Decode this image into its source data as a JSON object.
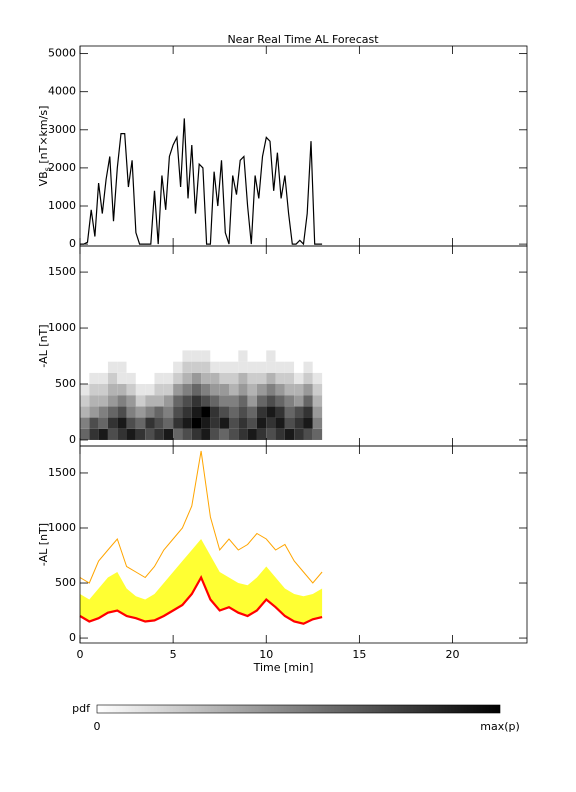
{
  "title": "Near Real Time AL Forecast",
  "chart_data": [
    {
      "type": "line",
      "y_label": "VB",
      "y_label_sub": "s",
      "y_label_rest": " [nT×km/s]",
      "color": "#000000",
      "x": [
        0,
        0.2,
        0.4,
        0.6,
        0.8,
        1.0,
        1.2,
        1.4,
        1.6,
        1.8,
        2.0,
        2.2,
        2.4,
        2.6,
        2.8,
        3.0,
        3.2,
        3.4,
        3.6,
        3.8,
        4.0,
        4.2,
        4.4,
        4.6,
        4.8,
        5.0,
        5.2,
        5.4,
        5.6,
        5.8,
        6.0,
        6.2,
        6.4,
        6.6,
        6.8,
        7.0,
        7.2,
        7.4,
        7.6,
        7.8,
        8.0,
        8.2,
        8.4,
        8.6,
        8.8,
        9.0,
        9.2,
        9.4,
        9.6,
        9.8,
        10.0,
        10.2,
        10.4,
        10.6,
        10.8,
        11.0,
        11.2,
        11.4,
        11.6,
        11.8,
        12.0,
        12.2,
        12.4,
        12.6,
        12.8,
        13.0
      ],
      "values": [
        0,
        0,
        50,
        900,
        200,
        1600,
        800,
        1700,
        2300,
        600,
        2000,
        2900,
        2900,
        1500,
        2200,
        300,
        0,
        0,
        0,
        0,
        1400,
        0,
        1800,
        900,
        2300,
        2600,
        2800,
        1500,
        3300,
        1200,
        2600,
        800,
        2100,
        2000,
        0,
        0,
        1900,
        1000,
        2200,
        300,
        0,
        1800,
        1300,
        2200,
        2300,
        1000,
        0,
        1800,
        1200,
        2300,
        2800,
        2700,
        1400,
        2400,
        1200,
        1800,
        800,
        0,
        0,
        100,
        0,
        800,
        2700,
        0,
        0,
        0
      ],
      "xlim": [
        0,
        24
      ],
      "xticks": [
        0,
        5,
        10,
        15,
        20
      ],
      "ylim": [
        -50,
        5200
      ],
      "yticks": [
        0,
        1000,
        2000,
        3000,
        4000,
        5000
      ]
    },
    {
      "type": "heatmap",
      "y_label": "-AL [nT]",
      "xbins": [
        0,
        0.5,
        1,
        1.5,
        2,
        2.5,
        3,
        3.5,
        4,
        4.5,
        5,
        5.5,
        6,
        6.5,
        7,
        7.5,
        8,
        8.5,
        9,
        9.5,
        10,
        10.5,
        11,
        11.5,
        12,
        12.5,
        13
      ],
      "ybins": [
        0,
        100,
        200,
        300,
        400,
        500,
        600,
        700,
        800
      ],
      "z": [
        [
          0.6,
          0.8,
          0.9,
          0.7,
          0.8,
          0.9,
          0.8,
          0.7,
          0.8,
          0.9,
          0.6,
          0.7,
          0.8,
          0.9,
          0.7,
          0.6,
          0.7,
          0.8,
          0.9,
          0.8,
          0.7,
          0.8,
          0.9,
          0.8,
          0.7,
          0.6
        ],
        [
          0.5,
          0.7,
          0.6,
          0.8,
          0.9,
          0.7,
          0.6,
          0.8,
          0.7,
          0.6,
          0.8,
          0.9,
          1.0,
          0.9,
          0.8,
          0.9,
          0.7,
          0.8,
          0.7,
          0.9,
          0.8,
          0.9,
          0.7,
          0.8,
          0.9,
          0.5
        ],
        [
          0.3,
          0.4,
          0.5,
          0.6,
          0.7,
          0.5,
          0.4,
          0.5,
          0.6,
          0.5,
          0.7,
          0.8,
          0.9,
          1.0,
          0.8,
          0.7,
          0.6,
          0.7,
          0.6,
          0.8,
          0.9,
          0.8,
          0.6,
          0.7,
          0.8,
          0.4
        ],
        [
          0.2,
          0.3,
          0.3,
          0.4,
          0.5,
          0.4,
          0.2,
          0.3,
          0.3,
          0.4,
          0.6,
          0.7,
          0.8,
          0.7,
          0.6,
          0.5,
          0.5,
          0.6,
          0.4,
          0.6,
          0.7,
          0.6,
          0.5,
          0.4,
          0.6,
          0.3
        ],
        [
          0.1,
          0.2,
          0.2,
          0.3,
          0.3,
          0.2,
          0.1,
          0.1,
          0.2,
          0.2,
          0.4,
          0.5,
          0.6,
          0.5,
          0.4,
          0.4,
          0.3,
          0.4,
          0.3,
          0.4,
          0.5,
          0.4,
          0.3,
          0.3,
          0.4,
          0.2
        ],
        [
          0,
          0.1,
          0.1,
          0.2,
          0.1,
          0.1,
          0,
          0,
          0.1,
          0.1,
          0.2,
          0.3,
          0.4,
          0.3,
          0.3,
          0.2,
          0.2,
          0.3,
          0.2,
          0.2,
          0.3,
          0.2,
          0.2,
          0.1,
          0.2,
          0.1
        ],
        [
          0,
          0,
          0,
          0.1,
          0.1,
          0,
          0,
          0,
          0,
          0,
          0.1,
          0.2,
          0.2,
          0.2,
          0.1,
          0.1,
          0.1,
          0.1,
          0.1,
          0.1,
          0.1,
          0.1,
          0.1,
          0,
          0.1,
          0
        ],
        [
          0,
          0,
          0,
          0,
          0,
          0,
          0,
          0,
          0,
          0,
          0,
          0.1,
          0.1,
          0.1,
          0,
          0,
          0,
          0.1,
          0,
          0,
          0.1,
          0,
          0,
          0,
          0,
          0
        ]
      ],
      "xlim": [
        0,
        24
      ],
      "xticks": [
        0,
        5,
        10,
        15,
        20
      ],
      "ylim": [
        -54,
        1733
      ],
      "yticks": [
        0,
        500,
        1000,
        1500
      ]
    },
    {
      "type": "band",
      "y_label": "-AL [nT]",
      "x_label": "Time [min]",
      "x": [
        0,
        0.5,
        1,
        1.5,
        2,
        2.5,
        3,
        3.5,
        4,
        4.5,
        5,
        5.5,
        6,
        6.5,
        7,
        7.5,
        8,
        8.5,
        9,
        9.5,
        10,
        10.5,
        11,
        11.5,
        12,
        12.5,
        13
      ],
      "series": [
        {
          "color": "#ff0000",
          "values": [
            200,
            150,
            180,
            230,
            250,
            200,
            180,
            150,
            160,
            200,
            250,
            300,
            400,
            550,
            350,
            250,
            280,
            230,
            200,
            250,
            350,
            280,
            200,
            150,
            130,
            170,
            190
          ]
        },
        {
          "color": "#ffff33",
          "values": [
            400,
            350,
            450,
            550,
            600,
            450,
            380,
            350,
            400,
            500,
            600,
            700,
            800,
            900,
            750,
            600,
            550,
            500,
            480,
            550,
            650,
            550,
            450,
            400,
            380,
            400,
            450
          ]
        },
        {
          "color": "#ffa500",
          "values": [
            550,
            500,
            700,
            800,
            900,
            650,
            600,
            550,
            650,
            800,
            900,
            1000,
            1200,
            1700,
            1100,
            800,
            900,
            800,
            850,
            950,
            900,
            800,
            850,
            700,
            600,
            500,
            600
          ]
        }
      ],
      "xlim": [
        0,
        24
      ],
      "xticks": [
        0,
        5,
        10,
        15,
        20
      ],
      "ylim": [
        -45,
        1745
      ],
      "yticks": [
        0,
        500,
        1000,
        1500
      ]
    }
  ],
  "colorbar": {
    "label": "pdf",
    "min_label": "0",
    "max_label": "max(p)"
  }
}
